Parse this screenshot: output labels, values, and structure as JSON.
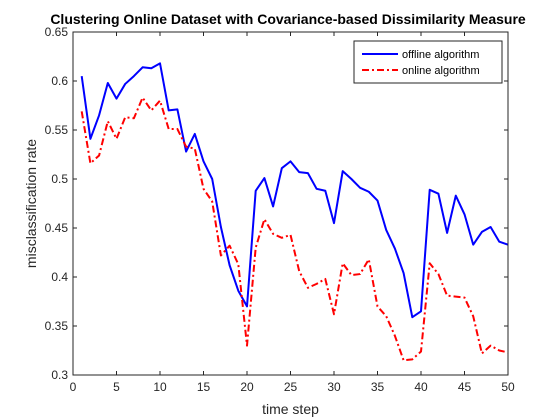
{
  "chart_data": {
    "type": "line",
    "title": "Clustering Online Dataset with Covariance-based Dissimilarity Measure",
    "xlabel": "time step",
    "ylabel": "misclassification rate",
    "xlim": [
      0,
      50
    ],
    "ylim": [
      0.3,
      0.65
    ],
    "xticks": [
      0,
      5,
      10,
      15,
      20,
      25,
      30,
      35,
      40,
      45,
      50
    ],
    "yticks": [
      0.3,
      0.35,
      0.4,
      0.45,
      0.5,
      0.55,
      0.6,
      0.65
    ],
    "ytick_labels": [
      "0.3",
      "0.35",
      "0.4",
      "0.45",
      "0.5",
      "0.55",
      "0.6",
      "0.65"
    ],
    "grid": false,
    "legend_position": "top-right",
    "x": [
      1,
      2,
      3,
      4,
      5,
      6,
      7,
      8,
      9,
      10,
      11,
      12,
      13,
      14,
      15,
      16,
      17,
      18,
      19,
      20,
      21,
      22,
      23,
      24,
      25,
      26,
      27,
      28,
      29,
      30,
      31,
      32,
      33,
      34,
      35,
      36,
      37,
      38,
      39,
      40,
      41,
      42,
      43,
      44,
      45,
      46,
      47,
      48,
      49,
      50
    ],
    "series": [
      {
        "name": "offline algorithm",
        "color": "#0000ff",
        "dash": "solid",
        "values": [
          0.605,
          0.541,
          0.565,
          0.598,
          0.582,
          0.597,
          0.605,
          0.614,
          0.613,
          0.618,
          0.57,
          0.571,
          0.528,
          0.546,
          0.518,
          0.5,
          0.451,
          0.412,
          0.386,
          0.37,
          0.488,
          0.501,
          0.472,
          0.511,
          0.518,
          0.507,
          0.506,
          0.49,
          0.488,
          0.455,
          0.508,
          0.5,
          0.491,
          0.487,
          0.478,
          0.448,
          0.429,
          0.404,
          0.359,
          0.365,
          0.489,
          0.485,
          0.445,
          0.483,
          0.464,
          0.433,
          0.446,
          0.451,
          0.436,
          0.433
        ]
      },
      {
        "name": "online algorithm",
        "color": "#ff0000",
        "dash": "dashdot",
        "values": [
          0.569,
          0.516,
          0.524,
          0.559,
          0.541,
          0.563,
          0.562,
          0.583,
          0.57,
          0.58,
          0.551,
          0.551,
          0.533,
          0.531,
          0.49,
          0.477,
          0.422,
          0.432,
          0.413,
          0.33,
          0.43,
          0.459,
          0.444,
          0.44,
          0.443,
          0.406,
          0.389,
          0.393,
          0.398,
          0.362,
          0.414,
          0.402,
          0.403,
          0.418,
          0.37,
          0.36,
          0.34,
          0.315,
          0.316,
          0.324,
          0.414,
          0.403,
          0.381,
          0.38,
          0.379,
          0.36,
          0.322,
          0.33,
          0.325,
          0.323
        ]
      }
    ]
  }
}
